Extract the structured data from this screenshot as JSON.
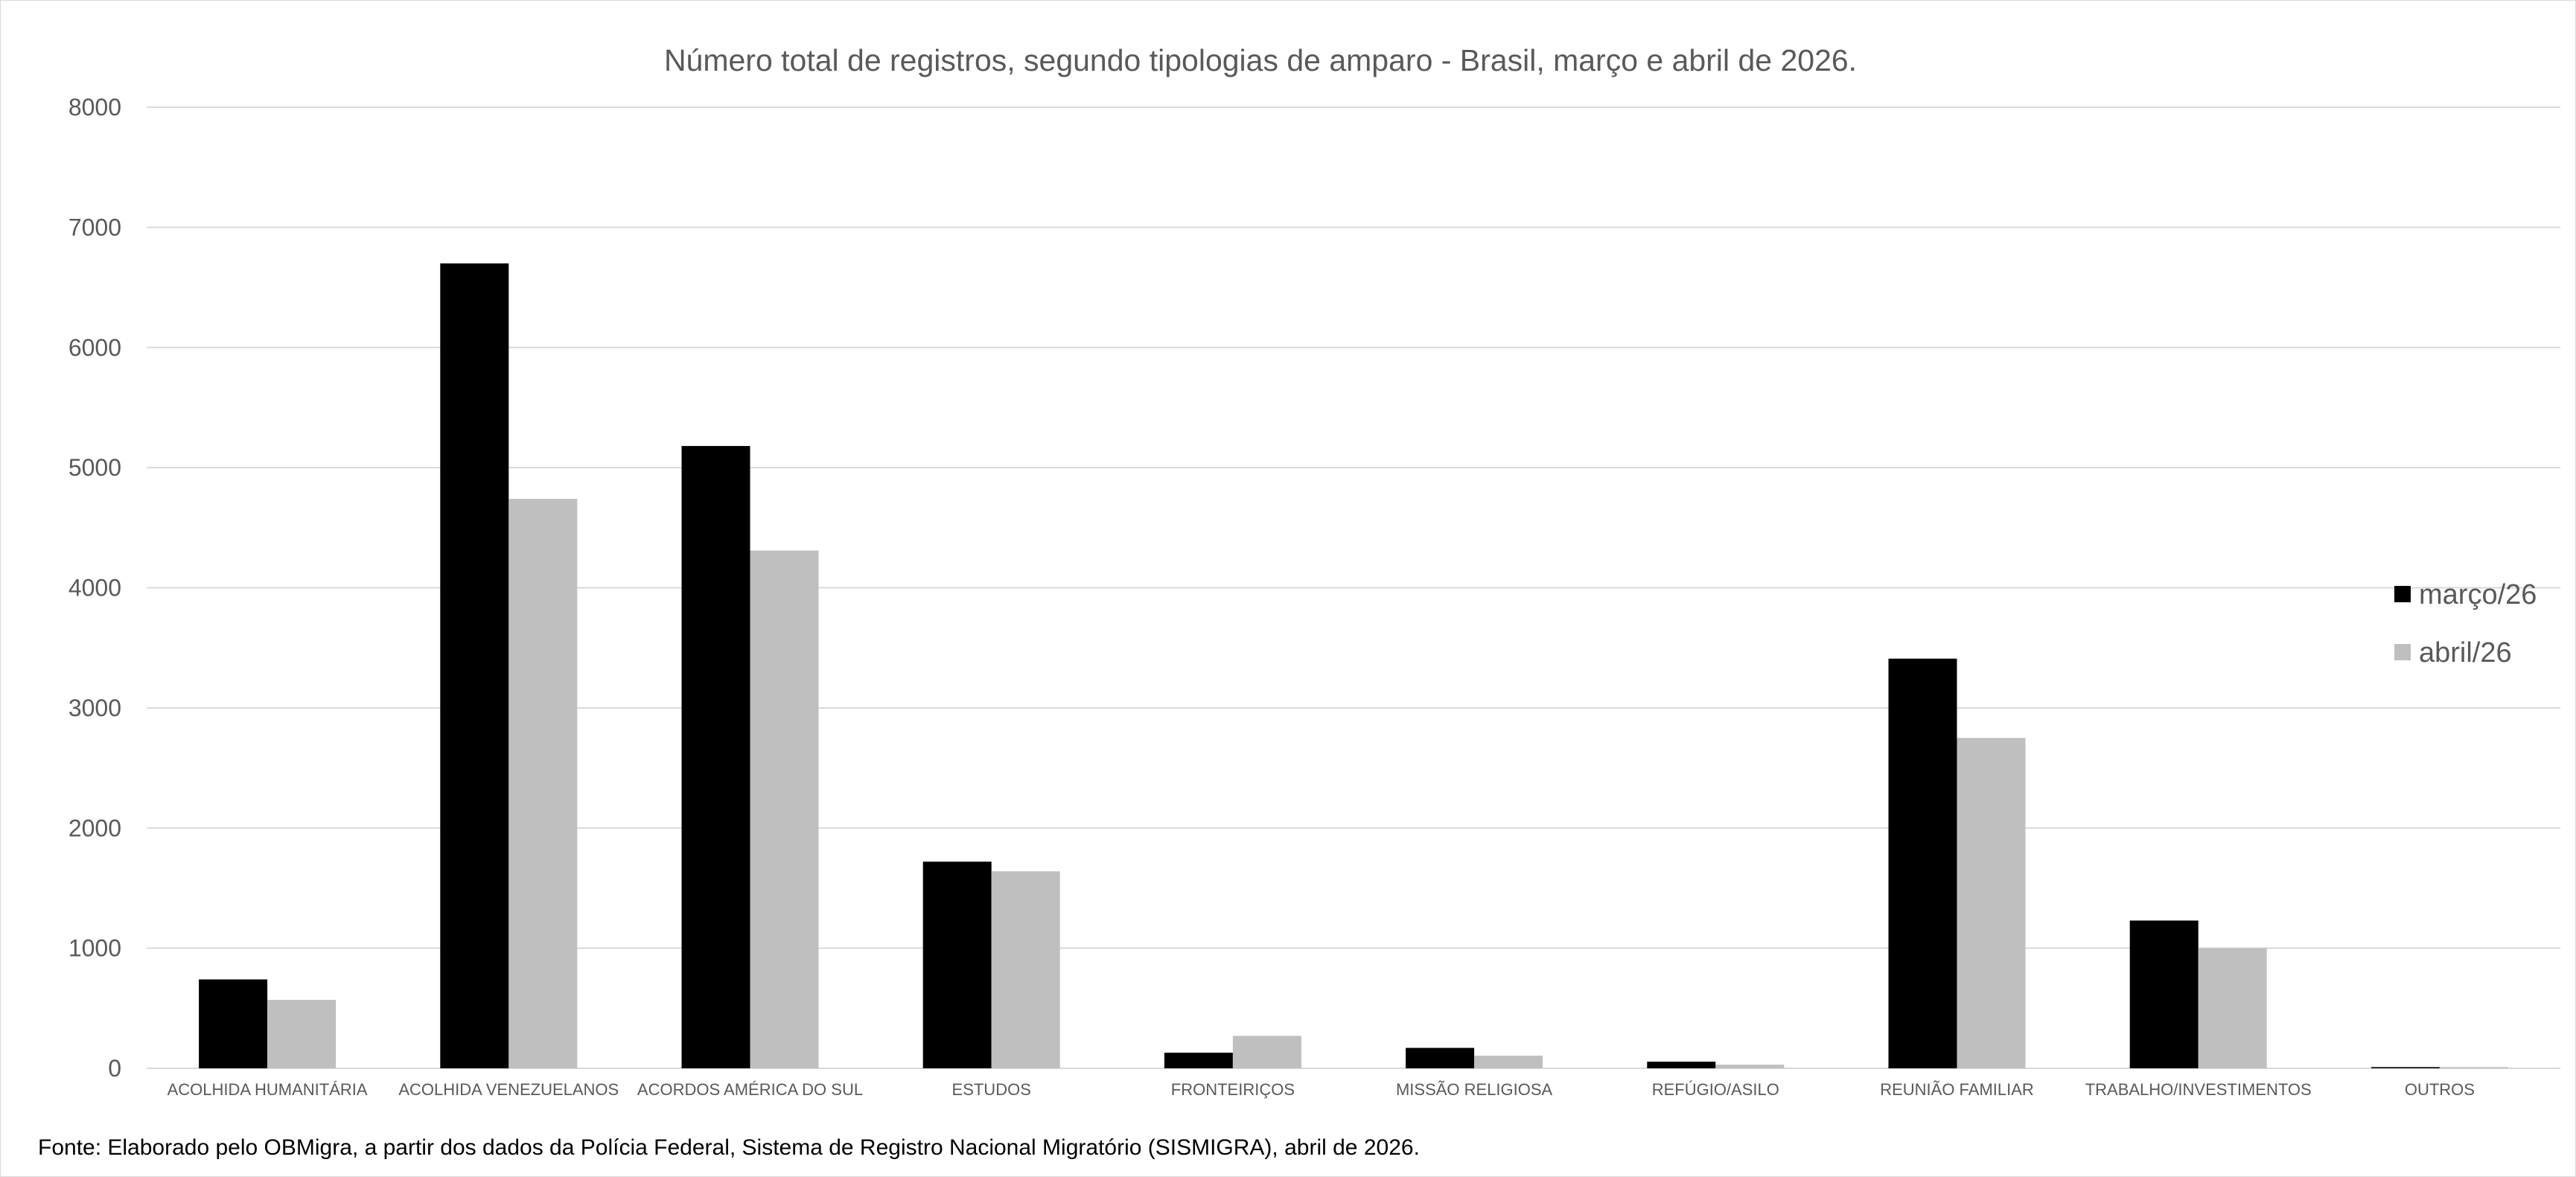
{
  "chart_data": {
    "type": "bar",
    "title": "Número total de registros, segundo tipologias de amparo - Brasil, março e abril de 2026.",
    "categories": [
      "ACOLHIDA HUMANITÁRIA",
      "ACOLHIDA VENEZUELANOS",
      "ACORDOS AMÉRICA DO SUL",
      "ESTUDOS",
      "FRONTEIRIÇOS",
      "MISSÃO RELIGIOSA",
      "REFÚGIO/ASILO",
      "REUNIÃO FAMILIAR",
      "TRABALHO/INVESTIMENTOS",
      "OUTROS"
    ],
    "series": [
      {
        "name": "março/26",
        "color": "#000000",
        "values": [
          740,
          6700,
          5180,
          1720,
          130,
          170,
          55,
          3410,
          1230,
          10
        ]
      },
      {
        "name": "abril/26",
        "color": "#bfbfbf",
        "values": [
          570,
          4740,
          4310,
          1640,
          270,
          105,
          30,
          2750,
          1000,
          10
        ]
      }
    ],
    "ylim": [
      0,
      8000
    ],
    "yticks": [
      "0",
      "1000",
      "2000",
      "3000",
      "4000",
      "5000",
      "6000",
      "7000",
      "8000"
    ],
    "xlabel": "",
    "ylabel": "",
    "grid": true,
    "gridline_color": "#d9d9d9",
    "legend_position": "right"
  },
  "source_note": "Fonte: Elaborado pelo OBMigra, a partir dos dados da Polícia Federal, Sistema de Registro Nacional Migratório (SISMIGRA), abril de 2026."
}
